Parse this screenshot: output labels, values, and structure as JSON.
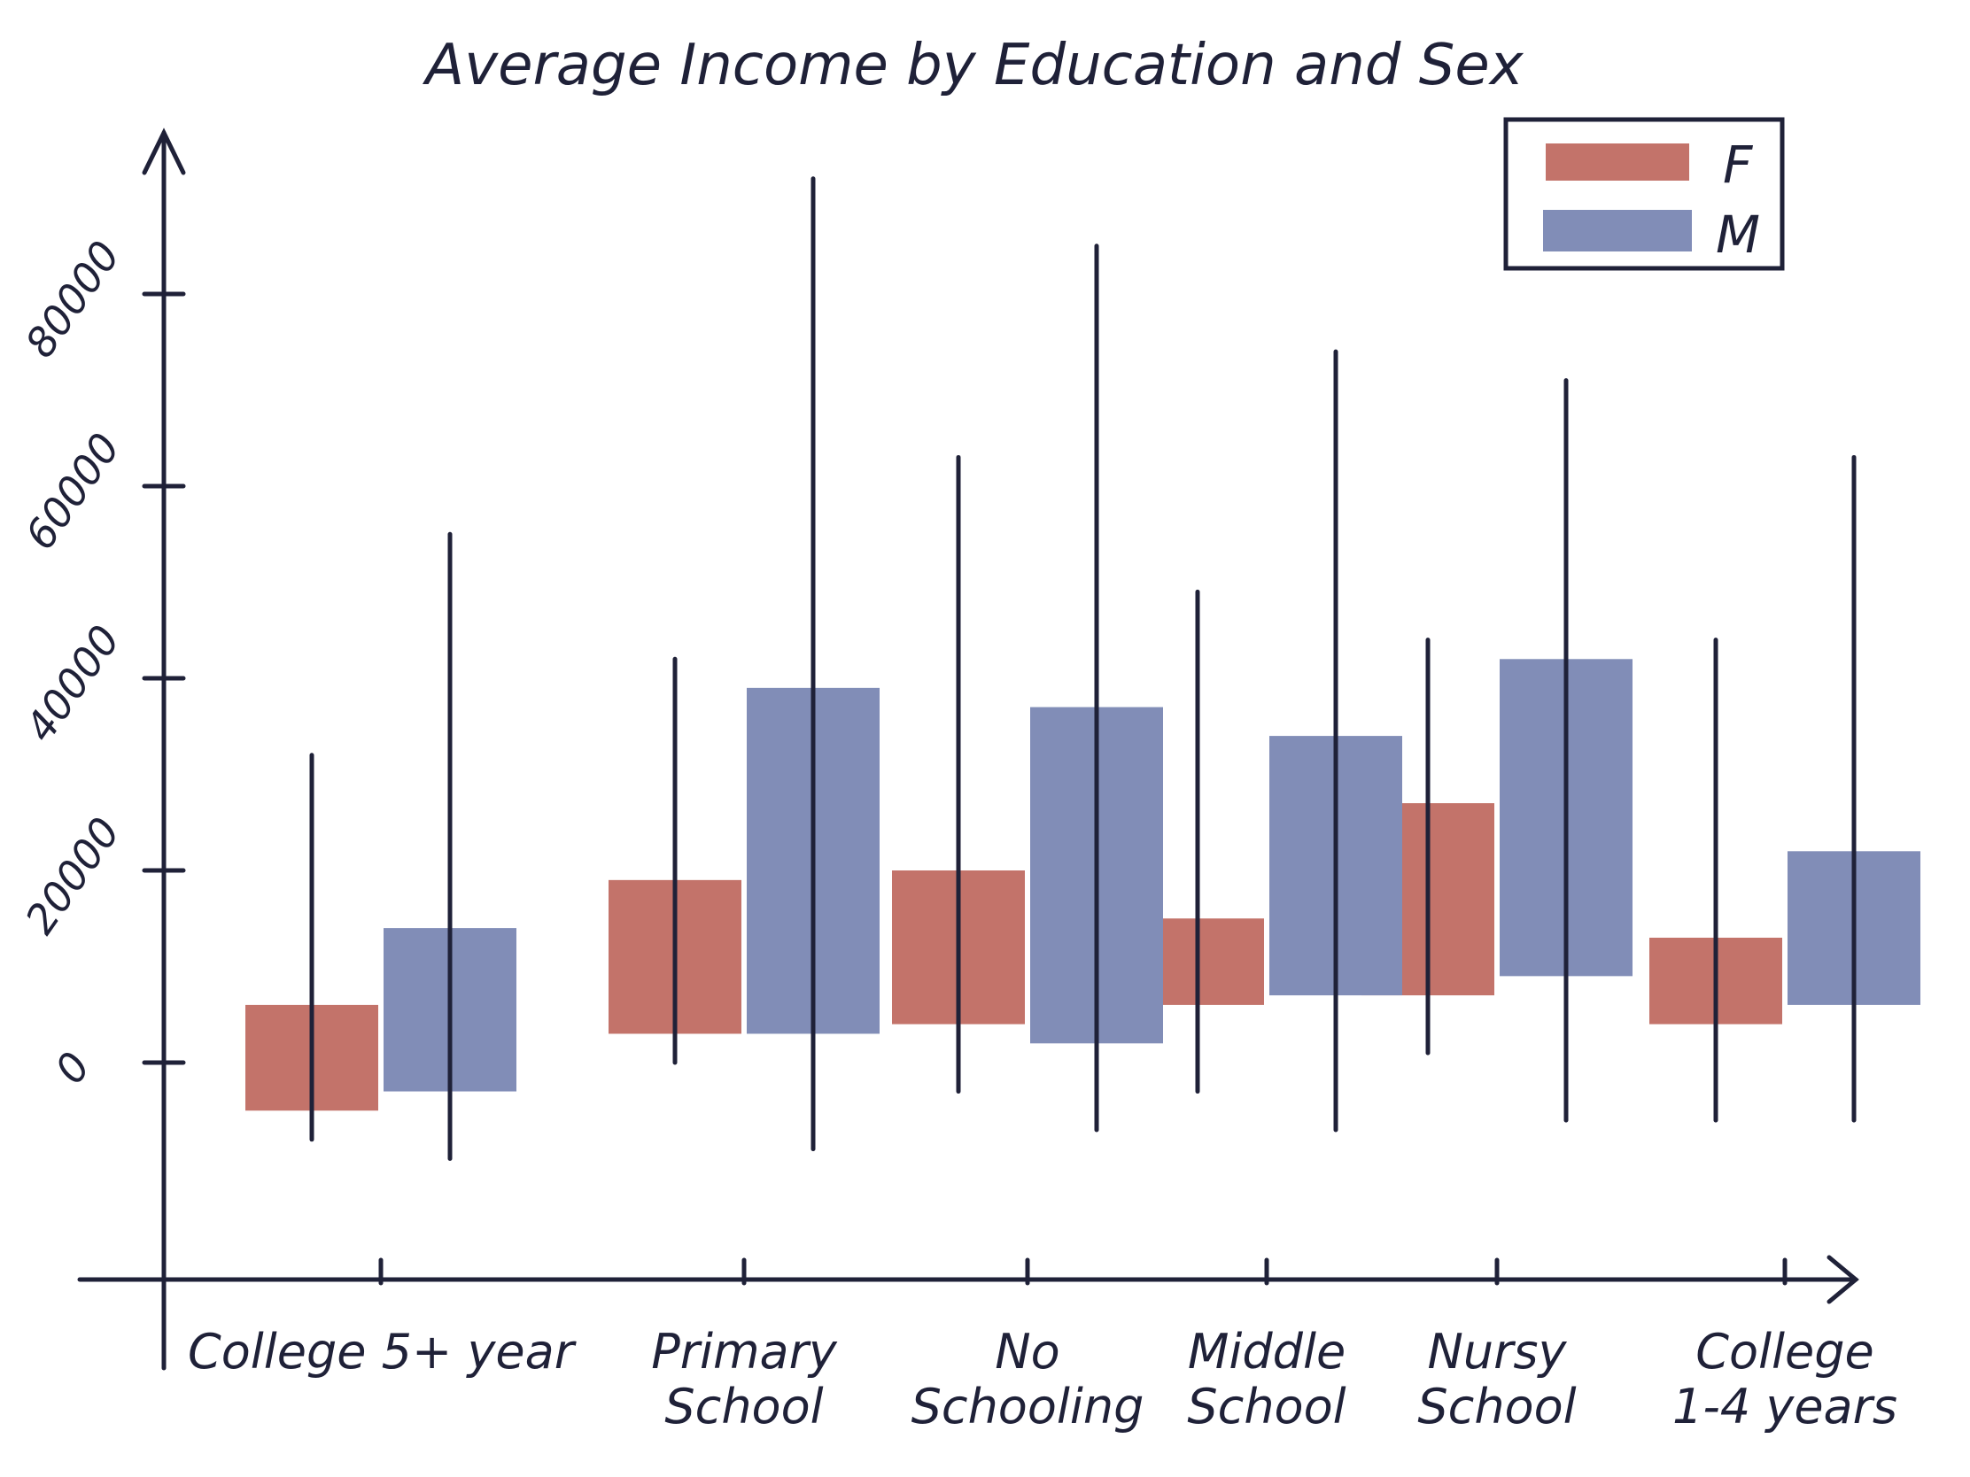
{
  "chart_data": {
    "type": "box",
    "title": "Average Income by Education and Sex",
    "xlabel": "",
    "ylabel": "",
    "ylim": [
      -22000,
      100000
    ],
    "yticks": [
      0,
      20000,
      40000,
      60000,
      80000
    ],
    "ytick_labels": [
      "0",
      "20000",
      "40000",
      "60000",
      "80000"
    ],
    "categories": [
      "College 5+ year",
      "Primary School",
      "No Schooling",
      "Middle School",
      "Nursy School",
      "College 1-4 years"
    ],
    "category_label_lines": [
      [
        "College 5+ year"
      ],
      [
        "Primary",
        "School"
      ],
      [
        "No",
        "Schooling"
      ],
      [
        "Middle",
        "School"
      ],
      [
        "Nursy",
        "School"
      ],
      [
        "College",
        "1-4 years"
      ]
    ],
    "legend": {
      "position": "top-right",
      "entries": [
        "F",
        "M"
      ]
    },
    "colors": {
      "F": "#c3736a",
      "M": "#818db7",
      "whisker": "#1f2138",
      "axis": "#1f2138"
    },
    "grid": false,
    "series": [
      {
        "name": "F",
        "boxes": [
          {
            "category": "College 5+ year",
            "whisker_low": -8000,
            "q1": -5000,
            "median": 6000,
            "q3": 6000,
            "whisker_high": 32000
          },
          {
            "category": "Primary School",
            "whisker_low": 0,
            "q1": 3000,
            "median": 19000,
            "q3": 19000,
            "whisker_high": 42000
          },
          {
            "category": "No Schooling",
            "whisker_low": -3000,
            "q1": 4000,
            "median": 20000,
            "q3": 20000,
            "whisker_high": 63000
          },
          {
            "category": "Middle School",
            "whisker_low": -3000,
            "q1": 6000,
            "median": 15000,
            "q3": 15000,
            "whisker_high": 49000
          },
          {
            "category": "Nursy School",
            "whisker_low": 1000,
            "q1": 7000,
            "median": 27000,
            "q3": 27000,
            "whisker_high": 44000
          },
          {
            "category": "College 1-4 years",
            "whisker_low": -6000,
            "q1": 4000,
            "median": 13000,
            "q3": 13000,
            "whisker_high": 44000
          }
        ]
      },
      {
        "name": "M",
        "boxes": [
          {
            "category": "College 5+ year",
            "whisker_low": -10000,
            "q1": -3000,
            "median": 14000,
            "q3": 14000,
            "whisker_high": 55000
          },
          {
            "category": "Primary School",
            "whisker_low": -9000,
            "q1": 3000,
            "median": 39000,
            "q3": 39000,
            "whisker_high": 92000
          },
          {
            "category": "No Schooling",
            "whisker_low": -7000,
            "q1": 2000,
            "median": 37000,
            "q3": 37000,
            "whisker_high": 85000
          },
          {
            "category": "Middle School",
            "whisker_low": -7000,
            "q1": 7000,
            "median": 34000,
            "q3": 34000,
            "whisker_high": 74000
          },
          {
            "category": "Nursy School",
            "whisker_low": -6000,
            "q1": 9000,
            "median": 42000,
            "q3": 42000,
            "whisker_high": 71000
          },
          {
            "category": "College 1-4 years",
            "whisker_low": -6000,
            "q1": 6000,
            "median": 22000,
            "q3": 22000,
            "whisker_high": 63000
          }
        ]
      }
    ]
  }
}
